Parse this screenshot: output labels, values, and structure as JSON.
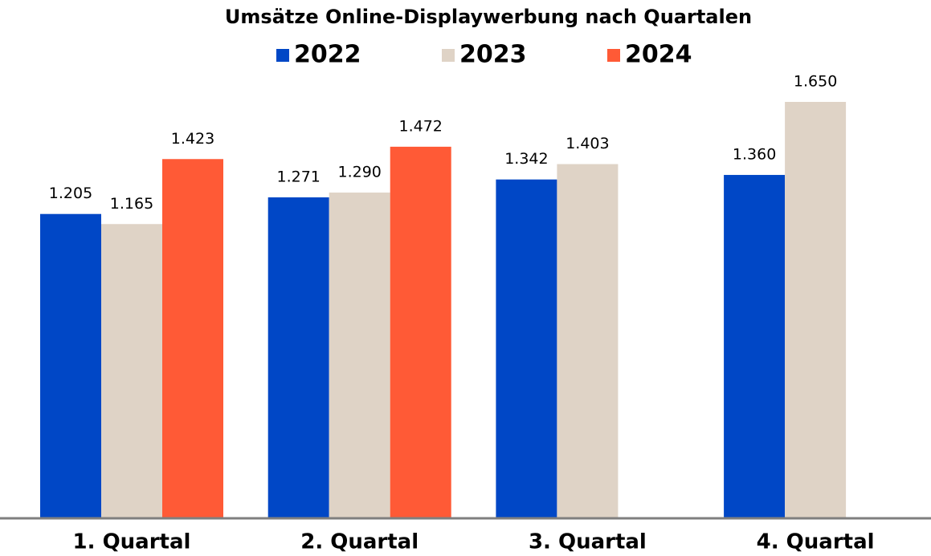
{
  "chart_data": {
    "type": "bar",
    "title": "Umsätze Online-Displaywerbung nach Quartalen",
    "categories": [
      "1. Quartal",
      "2. Quartal",
      "3. Quartal",
      "4. Quartal"
    ],
    "series": [
      {
        "name": "2022",
        "color": "#0047c6",
        "values": [
          1205,
          1271,
          1342,
          1360
        ],
        "value_labels": [
          "1.205",
          "1.271",
          "1.342",
          "1.360"
        ]
      },
      {
        "name": "2023",
        "color": "#dfd3c6",
        "values": [
          1165,
          1290,
          1403,
          1650
        ],
        "value_labels": [
          "1.165",
          "1.290",
          "1.403",
          "1.650"
        ]
      },
      {
        "name": "2024",
        "color": "#ff5a36",
        "values": [
          1423,
          1472,
          null,
          null
        ],
        "value_labels": [
          "1.423",
          "1.472",
          null,
          null
        ]
      }
    ],
    "ylim": [
      0,
      1650
    ]
  }
}
